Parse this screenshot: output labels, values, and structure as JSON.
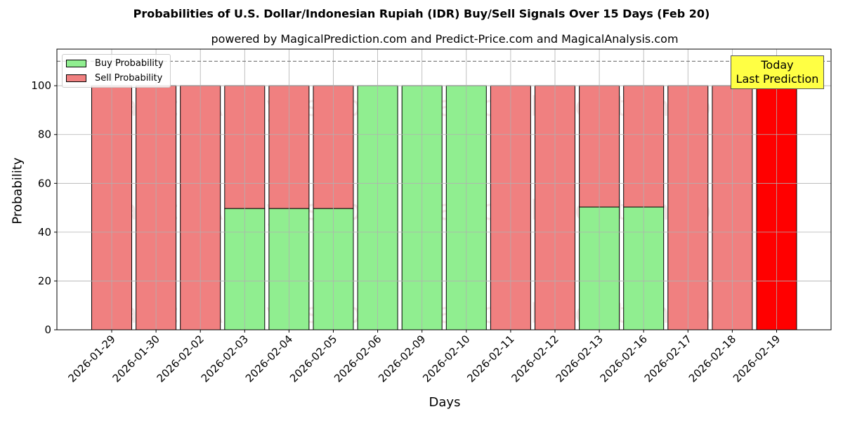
{
  "title": "Probabilities of U.S. Dollar/Indonesian Rupiah (IDR) Buy/Sell Signals Over 15 Days (Feb 20)",
  "subtitle": "powered by MagicalPrediction.com and Predict-Price.com and MagicalAnalysis.com",
  "legend": {
    "buy": "Buy Probability",
    "sell": "Sell Probability"
  },
  "annotation": {
    "line1": "Today",
    "line2": "Last Prediction"
  },
  "colors": {
    "buy": "#90ee90",
    "sell": "#f08080",
    "today": "#ff0000",
    "annotation_bg": "#ffff44"
  },
  "chart_data": {
    "type": "bar",
    "stacked": true,
    "title": "Probabilities of U.S. Dollar/Indonesian Rupiah (IDR) Buy/Sell Signals Over 15 Days (Feb 20)",
    "subtitle": "powered by MagicalPrediction.com and Predict-Price.com and MagicalAnalysis.com",
    "xlabel": "Days",
    "ylabel": "Probability",
    "ylim": [
      0,
      115
    ],
    "yticks": [
      0,
      20,
      40,
      60,
      80,
      100
    ],
    "grid": true,
    "legend_position": "upper left",
    "reference_line": {
      "y": 110,
      "style": "dashed"
    },
    "categories": [
      "2026-01-29",
      "2026-01-30",
      "2026-02-02",
      "2026-02-03",
      "2026-02-04",
      "2026-02-05",
      "2026-02-06",
      "2026-02-09",
      "2026-02-10",
      "2026-02-11",
      "2026-02-12",
      "2026-02-13",
      "2026-02-16",
      "2026-02-17",
      "2026-02-18",
      "2026-02-19"
    ],
    "series": [
      {
        "name": "Buy Probability",
        "values": [
          0,
          0,
          0,
          49.7,
          49.7,
          49.7,
          100,
          100,
          100,
          0,
          0,
          50.3,
          50.3,
          0,
          0,
          0
        ]
      },
      {
        "name": "Sell Probability",
        "values": [
          100,
          100,
          100,
          50.3,
          50.3,
          50.3,
          0,
          0,
          0,
          100,
          100,
          49.7,
          49.7,
          100,
          100,
          100
        ]
      }
    ],
    "annotations": [
      "Today\nLast Prediction"
    ],
    "watermarks": [
      "MagicalAnalysis.com",
      "Magical Prediction.com"
    ]
  }
}
